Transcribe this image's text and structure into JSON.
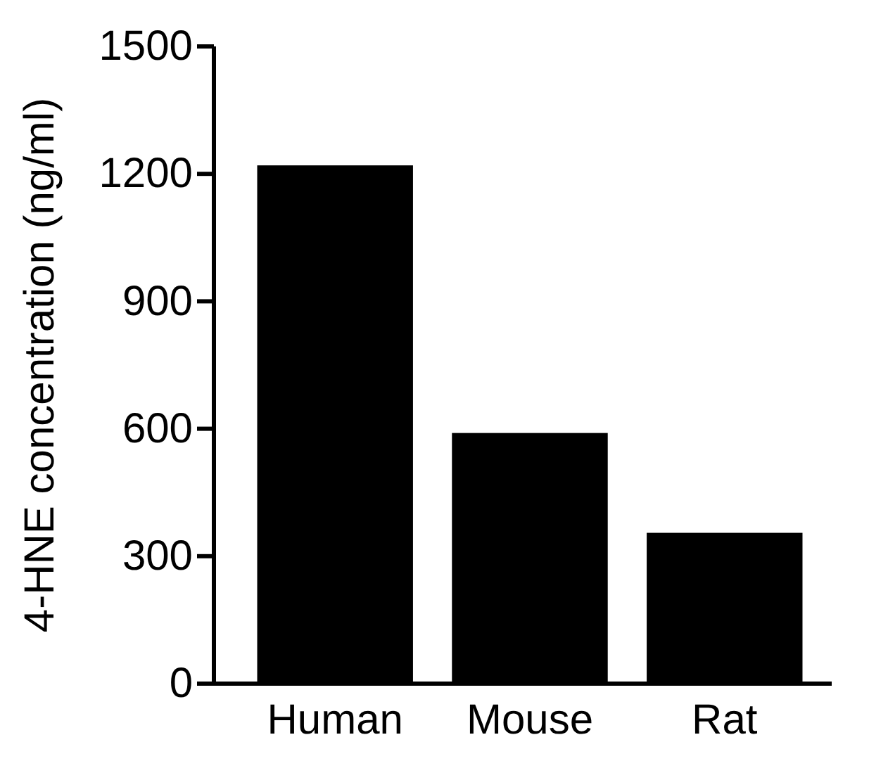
{
  "chart_data": {
    "type": "bar",
    "ylabel": "4-HNE concentration (ng/ml)",
    "categories": [
      "Human",
      "Mouse",
      "Rat"
    ],
    "values": [
      1220,
      590,
      355
    ],
    "color": "#000000",
    "ylim": [
      0,
      1500
    ],
    "yticks": [
      0,
      300,
      600,
      900,
      1200,
      1500
    ],
    "grid": false
  }
}
